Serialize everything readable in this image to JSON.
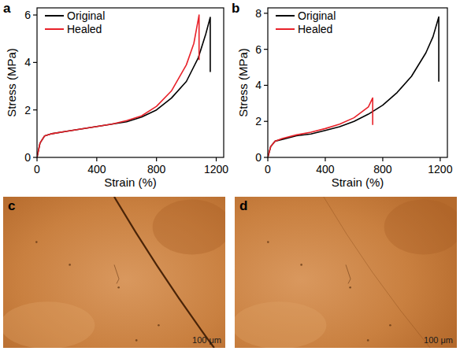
{
  "chart_data": [
    {
      "type": "line",
      "panel_label": "a",
      "x_label": "Strain (%)",
      "y_label": "Stress (MPa)",
      "xlim": [
        0,
        1250
      ],
      "xticks": [
        0,
        400,
        800,
        1200
      ],
      "ylim": [
        0,
        6.3
      ],
      "yticks": [
        0,
        2,
        4,
        6
      ],
      "legend": "upper left",
      "series": [
        {
          "name": "Original",
          "color": "#000000",
          "x": [
            0,
            20,
            50,
            100,
            200,
            300,
            400,
            500,
            600,
            700,
            800,
            900,
            1000,
            1080,
            1130,
            1160,
            1160
          ],
          "values": [
            0,
            0.6,
            0.9,
            1.0,
            1.1,
            1.2,
            1.3,
            1.4,
            1.5,
            1.7,
            2.0,
            2.5,
            3.2,
            4.2,
            5.2,
            5.9,
            3.6
          ]
        },
        {
          "name": "Healed",
          "color": "#e8222a",
          "x": [
            0,
            20,
            50,
            100,
            200,
            300,
            400,
            500,
            600,
            700,
            800,
            900,
            1000,
            1050,
            1085,
            1085
          ],
          "values": [
            0,
            0.6,
            0.9,
            1.0,
            1.1,
            1.2,
            1.3,
            1.4,
            1.55,
            1.75,
            2.15,
            2.8,
            3.9,
            4.8,
            6.0,
            4.1
          ]
        }
      ]
    },
    {
      "type": "line",
      "panel_label": "b",
      "x_label": "Strain (%)",
      "y_label": "Stress (MPa)",
      "xlim": [
        0,
        1250
      ],
      "xticks": [
        0,
        400,
        800,
        1200
      ],
      "ylim": [
        0,
        8.3
      ],
      "yticks": [
        0,
        2,
        4,
        6,
        8
      ],
      "legend": "upper left",
      "series": [
        {
          "name": "Original",
          "color": "#000000",
          "x": [
            0,
            20,
            50,
            100,
            200,
            300,
            400,
            500,
            600,
            700,
            800,
            900,
            1000,
            1100,
            1150,
            1190,
            1190
          ],
          "values": [
            0,
            0.6,
            0.9,
            1.0,
            1.2,
            1.3,
            1.5,
            1.7,
            2.0,
            2.4,
            2.9,
            3.6,
            4.5,
            5.8,
            6.7,
            7.8,
            4.2
          ]
        },
        {
          "name": "Healed",
          "color": "#e8222a",
          "x": [
            0,
            20,
            50,
            100,
            200,
            300,
            400,
            500,
            600,
            700,
            730,
            730
          ],
          "values": [
            0,
            0.6,
            0.9,
            1.05,
            1.25,
            1.4,
            1.6,
            1.85,
            2.2,
            2.8,
            3.3,
            1.8
          ]
        }
      ]
    }
  ],
  "images": [
    {
      "panel_label": "c",
      "scale_text": "100 μm"
    },
    {
      "panel_label": "d",
      "scale_text": "100 μm"
    }
  ]
}
